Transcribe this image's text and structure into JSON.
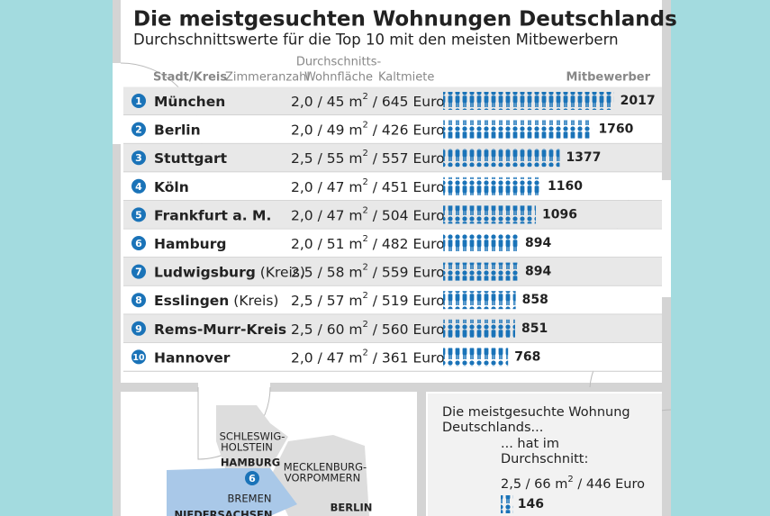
{
  "header": {
    "title": "Die meistgesuchten Wohnungen Deutschlands",
    "subtitle": "Durchschnittswerte für die Top 10 mit den meisten Mitbewerbern"
  },
  "columns": {
    "city": "Stadt/Kreis",
    "rooms": "Zimmeranzahl",
    "area": [
      "Durchschnitts-",
      "Wohnfläche"
    ],
    "rent": "Kaltmiete",
    "competitors": "Mitbewerber"
  },
  "rows": [
    {
      "rank": "1",
      "city": "München",
      "suffix": "",
      "detail": "2,0 / 45 m",
      "sup": "2",
      "rent": " / 645 Euro",
      "competitors": 2017
    },
    {
      "rank": "2",
      "city": "Berlin",
      "suffix": "",
      "detail": "2,0 / 49 m",
      "sup": "2",
      "rent": " / 426 Euro",
      "competitors": 1760
    },
    {
      "rank": "3",
      "city": "Stuttgart",
      "suffix": "",
      "detail": "2,5 / 55 m",
      "sup": "2",
      "rent": " / 557 Euro",
      "competitors": 1377
    },
    {
      "rank": "4",
      "city": "Köln",
      "suffix": "",
      "detail": "2,0 / 47 m",
      "sup": "2",
      "rent": " / 451 Euro",
      "competitors": 1160
    },
    {
      "rank": "5",
      "city": "Frankfurt a. M.",
      "suffix": "",
      "detail": "2,0 / 47 m",
      "sup": "2",
      "rent": " / 504 Euro",
      "competitors": 1096
    },
    {
      "rank": "6",
      "city": "Hamburg",
      "suffix": "",
      "detail": "2,0 / 51 m",
      "sup": "2",
      "rent": " / 482 Euro",
      "competitors": 894
    },
    {
      "rank": "7",
      "city": "Ludwigsburg",
      "suffix": " (Kreis)",
      "detail": "2,5 / 58 m",
      "sup": "2",
      "rent": " / 559 Euro",
      "competitors": 894
    },
    {
      "rank": "8",
      "city": "Esslingen",
      "suffix": " (Kreis)",
      "detail": "2,5 / 57 m",
      "sup": "2",
      "rent": " / 519 Euro",
      "competitors": 858
    },
    {
      "rank": "9",
      "city": "Rems-Murr-Kreis",
      "suffix": "",
      "detail": "2,5 / 60 m",
      "sup": "2",
      "rent": " / 560 Euro",
      "competitors": 851
    },
    {
      "rank": "10",
      "city": "Hannover",
      "suffix": "",
      "detail": "2,0 / 47 m",
      "sup": "2",
      "rent": " / 361 Euro",
      "competitors": 768
    }
  ],
  "map": {
    "sh": [
      "SCHLESWIG-",
      "HOLSTEIN"
    ],
    "hamburg": "HAMBURG",
    "hamburg_rank": "6",
    "mv": [
      "MECKLENBURG-",
      "VORPOMMERN"
    ],
    "bremen": "BREMEN",
    "ns": "NIEDERSACHSEN",
    "berlin": "BERLIN"
  },
  "summary": {
    "lines": [
      "Die meistgesuchte Wohnung",
      "Deutschlands..."
    ],
    "sub": [
      "... hat im",
      "Durchschnitt:"
    ],
    "detail": "2,5 / 66 m",
    "sup": "2",
    "rent": " / 446 Euro",
    "competitors": 146
  }
}
